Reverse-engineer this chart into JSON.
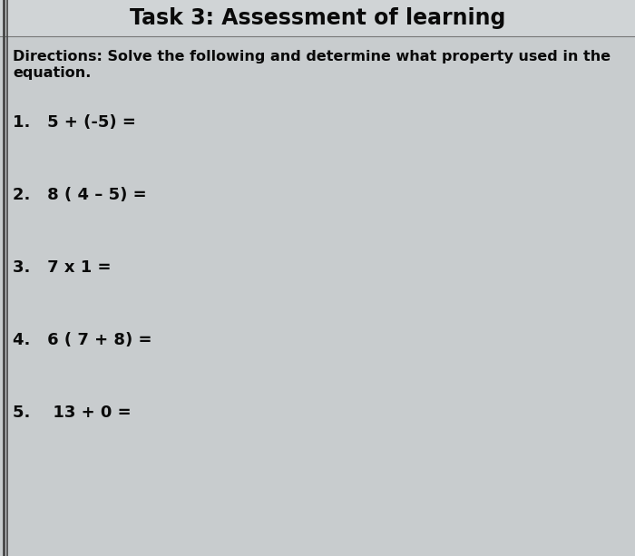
{
  "title": "Task 3: Assessment of learning",
  "directions_line1": "Directions: Solve the following and determine what property used in the",
  "directions_line2": "equation.",
  "items": [
    "1.   5 + (-5) =",
    "2.   8 ( 4 – 5) =",
    "3.   7 x 1 =",
    "4.   6 ( 7 + 8) =",
    "5.    13 + 0 ="
  ],
  "bg_color": "#c0c4c8",
  "content_bg": "#c8ccce",
  "title_fontsize": 17,
  "dir_fontsize": 11.5,
  "item_fontsize": 13,
  "title_color": "#0a0a0a",
  "text_color": "#0a0a0a",
  "left_line_color": "#444444",
  "title_bottom_line_color": "#777777"
}
